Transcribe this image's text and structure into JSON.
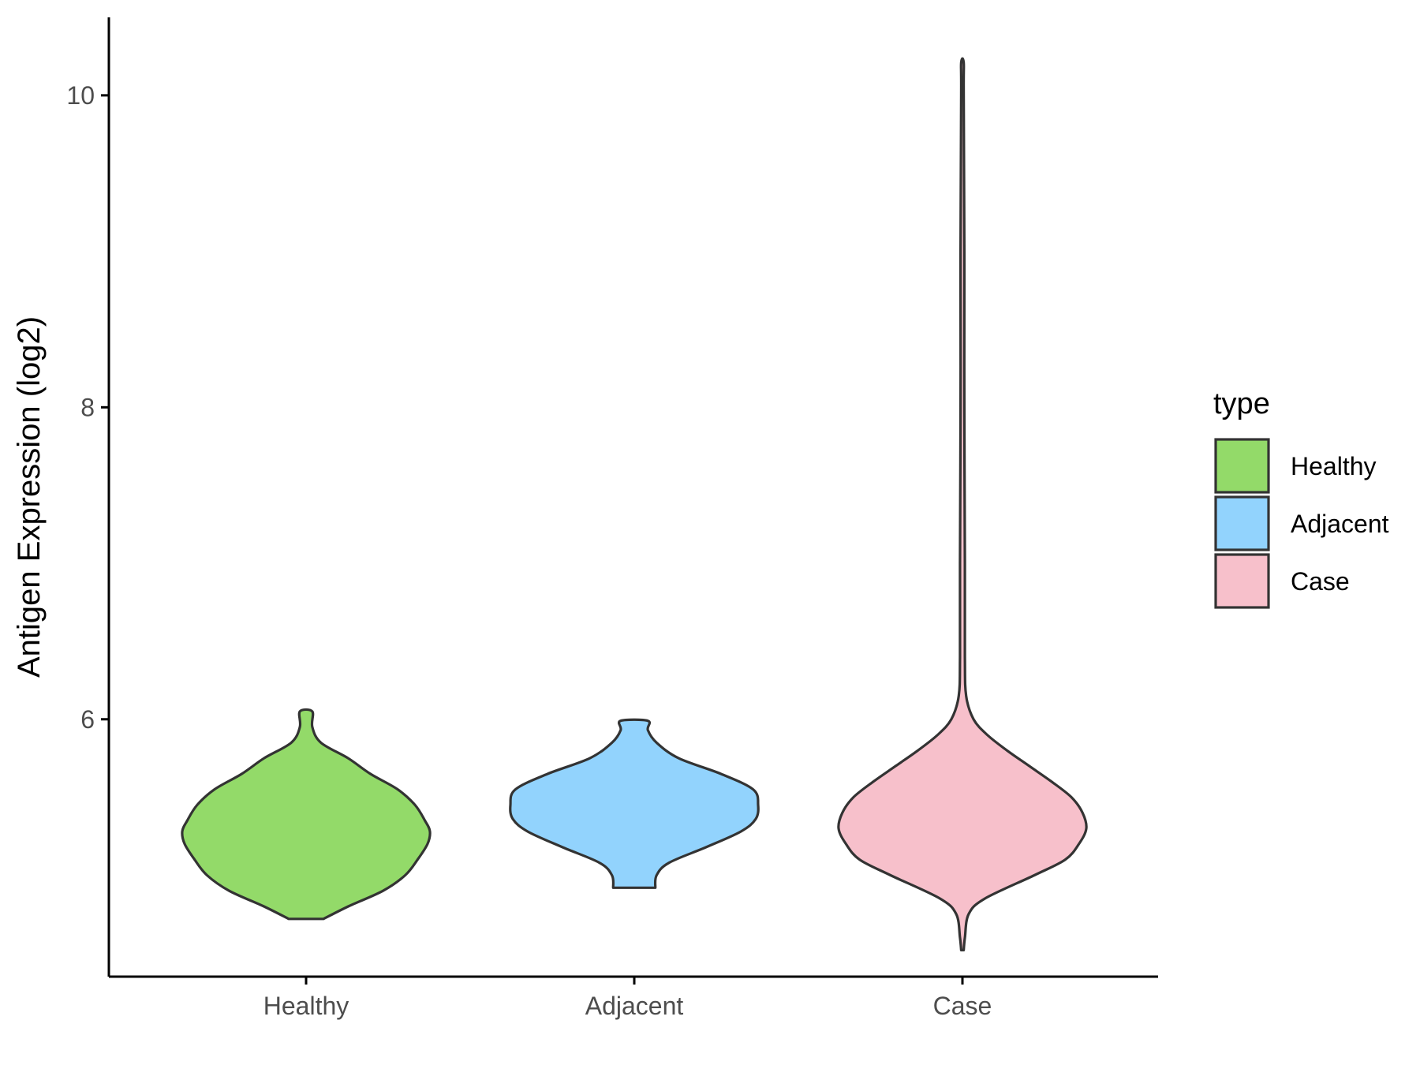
{
  "chart_data": {
    "type": "violin",
    "xlabel": "",
    "ylabel": "Antigen Expression (log2)",
    "ylim": [
      4.35,
      10.5
    ],
    "yticks": [
      6,
      8,
      10
    ],
    "categories": [
      "Healthy",
      "Adjacent",
      "Case"
    ],
    "legend": {
      "title": "type",
      "position": "right"
    },
    "grid": false,
    "series": [
      {
        "name": "Healthy",
        "color": "#93DA69",
        "min": 4.72,
        "max": 6.05,
        "profile": [
          [
            4.72,
            0.14
          ],
          [
            4.8,
            0.34
          ],
          [
            4.9,
            0.62
          ],
          [
            5.0,
            0.8
          ],
          [
            5.1,
            0.9
          ],
          [
            5.2,
            0.98
          ],
          [
            5.28,
            1.0
          ],
          [
            5.35,
            0.96
          ],
          [
            5.45,
            0.88
          ],
          [
            5.55,
            0.74
          ],
          [
            5.65,
            0.52
          ],
          [
            5.75,
            0.34
          ],
          [
            5.85,
            0.12
          ],
          [
            5.95,
            0.05
          ],
          [
            6.05,
            0.05
          ]
        ]
      },
      {
        "name": "Adjacent",
        "color": "#92D3FD",
        "min": 4.92,
        "max": 5.99,
        "profile": [
          [
            4.92,
            0.17
          ],
          [
            5.0,
            0.18
          ],
          [
            5.08,
            0.28
          ],
          [
            5.18,
            0.58
          ],
          [
            5.28,
            0.86
          ],
          [
            5.36,
            0.98
          ],
          [
            5.45,
            1.0
          ],
          [
            5.55,
            0.96
          ],
          [
            5.65,
            0.7
          ],
          [
            5.75,
            0.36
          ],
          [
            5.85,
            0.18
          ],
          [
            5.93,
            0.11
          ],
          [
            5.99,
            0.11
          ]
        ]
      },
      {
        "name": "Case",
        "color": "#F7C0CB",
        "min": 4.52,
        "max": 10.21,
        "profile": [
          [
            4.52,
            0.01
          ],
          [
            4.6,
            0.02
          ],
          [
            4.75,
            0.05
          ],
          [
            4.85,
            0.18
          ],
          [
            5.0,
            0.58
          ],
          [
            5.1,
            0.83
          ],
          [
            5.2,
            0.94
          ],
          [
            5.3,
            1.0
          ],
          [
            5.4,
            0.97
          ],
          [
            5.5,
            0.88
          ],
          [
            5.6,
            0.72
          ],
          [
            5.7,
            0.54
          ],
          [
            5.8,
            0.36
          ],
          [
            5.9,
            0.2
          ],
          [
            6.0,
            0.09
          ],
          [
            6.15,
            0.03
          ],
          [
            6.4,
            0.02
          ],
          [
            7.0,
            0.02
          ],
          [
            8.0,
            0.015
          ],
          [
            9.0,
            0.015
          ],
          [
            10.0,
            0.01
          ],
          [
            10.21,
            0.01
          ]
        ]
      }
    ]
  }
}
